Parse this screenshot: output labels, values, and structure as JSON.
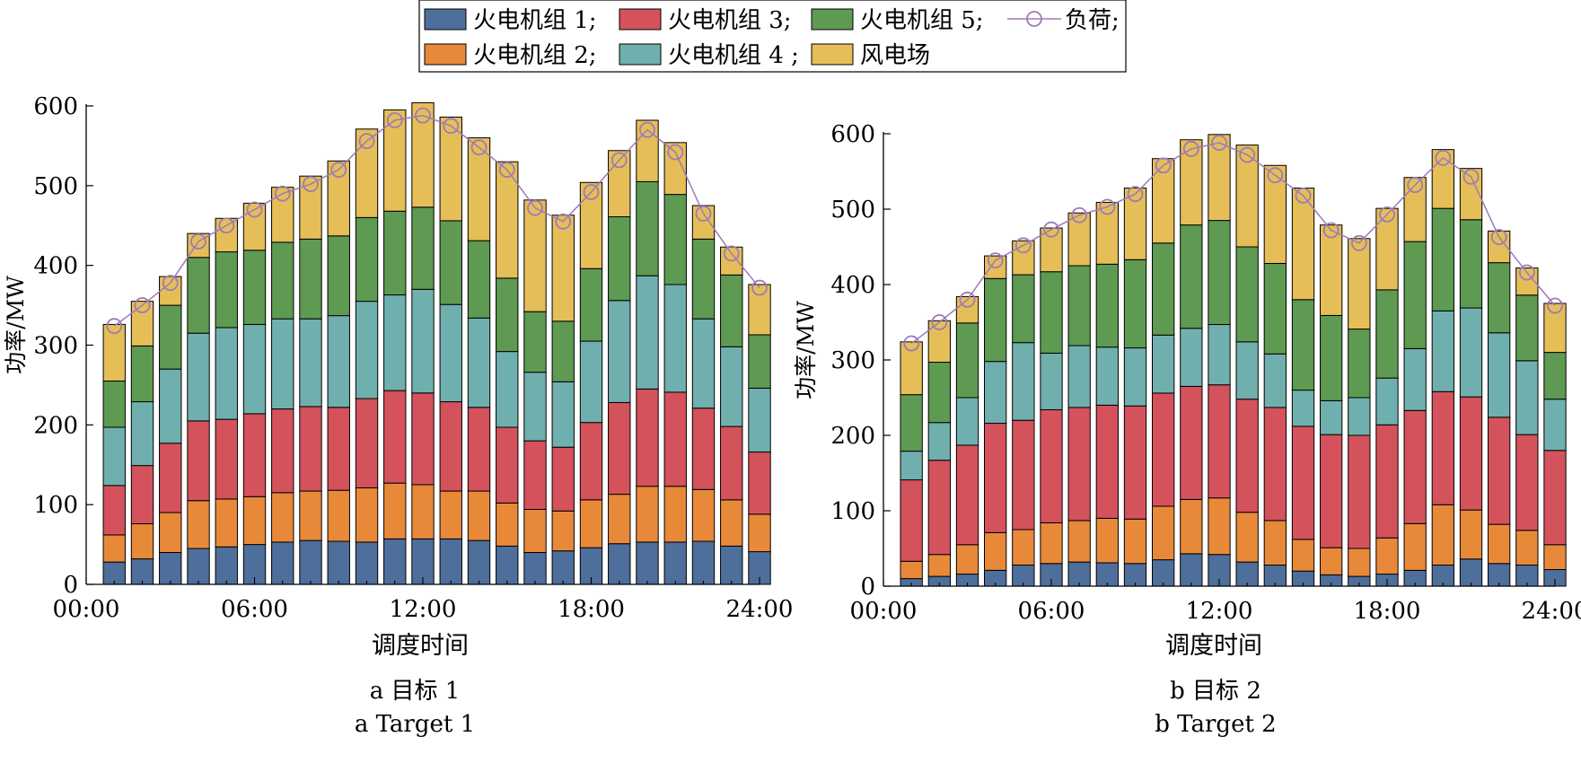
{
  "legend": {
    "items": [
      {
        "label": "火电机组 1;",
        "color": "#4E6E9B",
        "kind": "bar"
      },
      {
        "label": "火电机组 3;",
        "color": "#D4525C",
        "kind": "bar"
      },
      {
        "label": "火电机组 5;",
        "color": "#5E9A52",
        "kind": "bar"
      },
      {
        "label": "负荷;",
        "color": "#9C7BB8",
        "kind": "line"
      },
      {
        "label": "火电机组 2;",
        "color": "#E8893A",
        "kind": "bar"
      },
      {
        "label": "火电机组 4 ;",
        "color": "#6FB0AE",
        "kind": "bar"
      },
      {
        "label": "风电场",
        "color": "#E6BE58",
        "kind": "bar"
      }
    ]
  },
  "chart_data": [
    {
      "type": "bar",
      "stacked": true,
      "xlabel": "调度时间",
      "ylabel": "功率/MW",
      "ylim": [
        0,
        600
      ],
      "yticks": [
        0,
        100,
        200,
        300,
        400,
        500,
        600
      ],
      "xlim": [
        0,
        24
      ],
      "xticks": [
        "00:00",
        "06:00",
        "12:00",
        "18:00",
        "24:00"
      ],
      "caption_cn": "a 目标 1",
      "caption_en": "a Target 1",
      "categories": [
        1,
        2,
        3,
        4,
        5,
        6,
        7,
        8,
        9,
        10,
        11,
        12,
        13,
        14,
        15,
        16,
        17,
        18,
        19,
        20,
        21,
        22,
        23,
        24
      ],
      "series": [
        {
          "name": "火电机组 1",
          "color": "#4E6E9B",
          "values": [
            28,
            32,
            40,
            45,
            47,
            50,
            53,
            55,
            54,
            53,
            57,
            57,
            57,
            55,
            48,
            40,
            42,
            46,
            51,
            53,
            53,
            54,
            48,
            41
          ]
        },
        {
          "name": "火电机组 2",
          "color": "#E8893A",
          "values": [
            34,
            44,
            50,
            60,
            60,
            60,
            62,
            62,
            64,
            68,
            70,
            68,
            60,
            62,
            54,
            54,
            50,
            60,
            62,
            70,
            70,
            65,
            58,
            47
          ]
        },
        {
          "name": "火电机组 3",
          "color": "#D4525C",
          "values": [
            62,
            73,
            87,
            100,
            100,
            104,
            105,
            106,
            104,
            112,
            116,
            115,
            112,
            105,
            95,
            86,
            80,
            97,
            115,
            122,
            118,
            102,
            92,
            78
          ]
        },
        {
          "name": "火电机组 4",
          "color": "#6FB0AE",
          "values": [
            73,
            80,
            93,
            110,
            115,
            112,
            113,
            110,
            115,
            122,
            120,
            130,
            122,
            112,
            95,
            86,
            82,
            102,
            128,
            142,
            135,
            112,
            100,
            80
          ]
        },
        {
          "name": "火电机组 5",
          "color": "#5E9A52",
          "values": [
            58,
            70,
            80,
            95,
            95,
            93,
            96,
            100,
            100,
            105,
            105,
            103,
            105,
            97,
            92,
            76,
            76,
            91,
            105,
            118,
            113,
            100,
            90,
            67
          ]
        },
        {
          "name": "风电场",
          "color": "#E6BE58",
          "values": [
            71,
            56,
            36,
            30,
            42,
            59,
            69,
            79,
            94,
            111,
            127,
            131,
            130,
            129,
            146,
            140,
            133,
            108,
            83,
            77,
            65,
            42,
            35,
            63
          ]
        }
      ],
      "load": {
        "name": "负荷",
        "color": "#9C7BB8",
        "values": [
          324,
          350,
          378,
          430,
          450,
          470,
          490,
          502,
          520,
          556,
          582,
          588,
          575,
          548,
          520,
          472,
          455,
          492,
          532,
          570,
          542,
          465,
          415,
          372
        ]
      }
    },
    {
      "type": "bar",
      "stacked": true,
      "xlabel": "调度时间",
      "ylabel": "功率/MW",
      "ylim": [
        0,
        600
      ],
      "yticks": [
        0,
        100,
        200,
        300,
        400,
        500,
        600
      ],
      "xlim": [
        0,
        24
      ],
      "xticks": [
        "00:00",
        "06:00",
        "12:00",
        "18:00",
        "24:00"
      ],
      "caption_cn": "b 目标 2",
      "caption_en": "b Target 2",
      "categories": [
        1,
        2,
        3,
        4,
        5,
        6,
        7,
        8,
        9,
        10,
        11,
        12,
        13,
        14,
        15,
        16,
        17,
        18,
        19,
        20,
        21,
        22,
        23,
        24
      ],
      "series": [
        {
          "name": "火电机组 1",
          "color": "#4E6E9B",
          "values": [
            10,
            13,
            16,
            21,
            28,
            30,
            32,
            31,
            30,
            35,
            43,
            42,
            32,
            28,
            20,
            15,
            13,
            16,
            21,
            28,
            36,
            30,
            28,
            22
          ]
        },
        {
          "name": "火电机组 2",
          "color": "#E8893A",
          "values": [
            23,
            29,
            39,
            50,
            47,
            54,
            55,
            59,
            59,
            71,
            72,
            75,
            66,
            59,
            42,
            36,
            37,
            48,
            62,
            80,
            65,
            52,
            46,
            33
          ]
        },
        {
          "name": "火电机组 3",
          "color": "#D4525C",
          "values": [
            108,
            125,
            132,
            145,
            145,
            150,
            150,
            150,
            150,
            150,
            150,
            150,
            150,
            150,
            150,
            150,
            150,
            150,
            150,
            150,
            150,
            142,
            127,
            125
          ]
        },
        {
          "name": "火电机组 4",
          "color": "#6FB0AE",
          "values": [
            38,
            50,
            63,
            82,
            103,
            75,
            82,
            77,
            77,
            77,
            77,
            80,
            76,
            71,
            48,
            45,
            50,
            62,
            82,
            107,
            118,
            112,
            98,
            68
          ]
        },
        {
          "name": "火电机组 5",
          "color": "#5E9A52",
          "values": [
            75,
            80,
            99,
            110,
            90,
            108,
            106,
            110,
            117,
            122,
            137,
            138,
            126,
            120,
            120,
            113,
            91,
            117,
            142,
            136,
            117,
            93,
            87,
            62
          ]
        },
        {
          "name": "风电场",
          "color": "#E6BE58",
          "values": [
            70,
            55,
            35,
            30,
            45,
            58,
            70,
            82,
            95,
            112,
            113,
            114,
            135,
            130,
            148,
            120,
            120,
            108,
            85,
            78,
            68,
            42,
            36,
            65
          ]
        }
      ],
      "load": {
        "name": "负荷",
        "color": "#9C7BB8",
        "values": [
          322,
          350,
          380,
          432,
          452,
          473,
          492,
          503,
          520,
          558,
          580,
          588,
          572,
          545,
          518,
          472,
          455,
          493,
          532,
          568,
          543,
          463,
          416,
          372
        ]
      }
    }
  ]
}
